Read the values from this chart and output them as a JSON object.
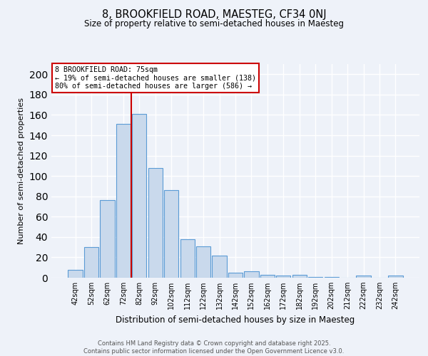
{
  "title_line1": "8, BROOKFIELD ROAD, MAESTEG, CF34 0NJ",
  "title_line2": "Size of property relative to semi-detached houses in Maesteg",
  "xlabel": "Distribution of semi-detached houses by size in Maesteg",
  "ylabel": "Number of semi-detached properties",
  "bar_labels": [
    "42sqm",
    "52sqm",
    "62sqm",
    "72sqm",
    "82sqm",
    "92sqm",
    "102sqm",
    "112sqm",
    "122sqm",
    "132sqm",
    "142sqm",
    "152sqm",
    "162sqm",
    "172sqm",
    "182sqm",
    "192sqm",
    "202sqm",
    "212sqm",
    "222sqm",
    "232sqm",
    "242sqm"
  ],
  "bar_values": [
    8,
    30,
    76,
    151,
    161,
    108,
    86,
    38,
    31,
    22,
    5,
    6,
    3,
    2,
    3,
    1,
    1,
    0,
    2,
    0,
    2
  ],
  "bar_color": "#c9d9ec",
  "bar_edge_color": "#5b9bd5",
  "annotation_text_line1": "8 BROOKFIELD ROAD: 75sqm",
  "annotation_text_line2": "← 19% of semi-detached houses are smaller (138)",
  "annotation_text_line3": "80% of semi-detached houses are larger (586) →",
  "annotation_box_color": "#ffffff",
  "annotation_box_edge": "#cc0000",
  "vline_color": "#cc0000",
  "vline_pos": 3.5,
  "ylim": [
    0,
    210
  ],
  "yticks": [
    0,
    20,
    40,
    60,
    80,
    100,
    120,
    140,
    160,
    180,
    200
  ],
  "footer_text": "Contains HM Land Registry data © Crown copyright and database right 2025.\nContains public sector information licensed under the Open Government Licence v3.0.",
  "background_color": "#eef2f9",
  "grid_color": "#ffffff"
}
